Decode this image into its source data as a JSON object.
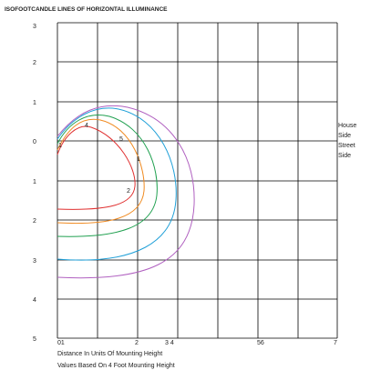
{
  "title": "ISOFOOTCANDLE LINES OF HORIZONTAL ILLUMINANCE",
  "y_labels": [
    "3",
    "2",
    "1",
    "0",
    "1",
    "2",
    "3",
    "4",
    "5"
  ],
  "x_labels": [
    "01",
    "2",
    "3 4",
    "56",
    "7"
  ],
  "side_labels": [
    "House",
    "Side",
    "Street",
    "Side"
  ],
  "contour_labels": [
    "1",
    "4",
    "5",
    "1",
    "2"
  ],
  "notes": [
    "Distance In Units Of Mounting Height",
    "Values Based On 4 Foot Mounting Height"
  ]
}
